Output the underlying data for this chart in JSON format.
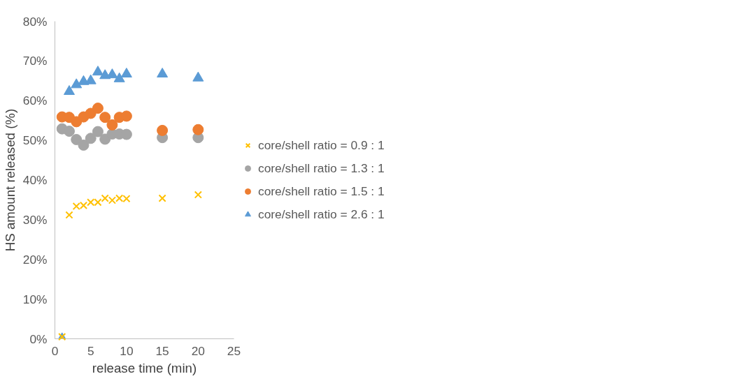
{
  "chart_data": {
    "type": "scatter",
    "xlabel": "release time (min)",
    "ylabel": "HS amount released (%)",
    "x": [
      1,
      2,
      3,
      4,
      5,
      6,
      7,
      8,
      9,
      10,
      15,
      20
    ],
    "series": [
      {
        "name": "core/shell ratio = 0.9 : 1",
        "color": "#ffc000",
        "marker": "cross",
        "values": [
          0.5,
          31.2,
          33.4,
          33.6,
          34.4,
          34.4,
          35.4,
          34.9,
          35.4,
          35.3,
          35.4,
          36.3
        ]
      },
      {
        "name": "core/shell ratio = 1.3 : 1",
        "color": "#a5a5a5",
        "marker": "circle",
        "values": [
          52.9,
          52.3,
          50.2,
          48.8,
          50.5,
          52.2,
          50.3,
          51.6,
          51.6,
          51.5,
          50.7,
          50.7
        ]
      },
      {
        "name": "core/shell ratio = 1.5 : 1",
        "color": "#ed7d31",
        "marker": "circle",
        "values": [
          55.9,
          55.8,
          54.7,
          55.9,
          56.8,
          58.1,
          55.8,
          53.9,
          55.8,
          56.1,
          52.5,
          52.7
        ]
      },
      {
        "name": "core/shell ratio = 2.6 : 1",
        "color": "#5b9bd5",
        "marker": "triangle",
        "values": [
          0,
          62.3,
          64.0,
          64.8,
          65.0,
          67.2,
          66.3,
          66.5,
          65.5,
          66.7,
          66.7,
          65.7
        ]
      }
    ],
    "xlim": [
      0,
      25
    ],
    "xticks": [
      0,
      5,
      10,
      15,
      20,
      25
    ],
    "ylim": [
      0,
      80
    ],
    "yticks": [
      {
        "value": 0,
        "label": "0%"
      },
      {
        "value": 10,
        "label": "10%"
      },
      {
        "value": 20,
        "label": "20%"
      },
      {
        "value": 30,
        "label": "30%"
      },
      {
        "value": 40,
        "label": "40%"
      },
      {
        "value": 50,
        "label": "50%"
      },
      {
        "value": 60,
        "label": "60%"
      },
      {
        "value": 70,
        "label": "70%"
      },
      {
        "value": 80,
        "label": "80%"
      }
    ],
    "grid": false,
    "legend": "right"
  }
}
